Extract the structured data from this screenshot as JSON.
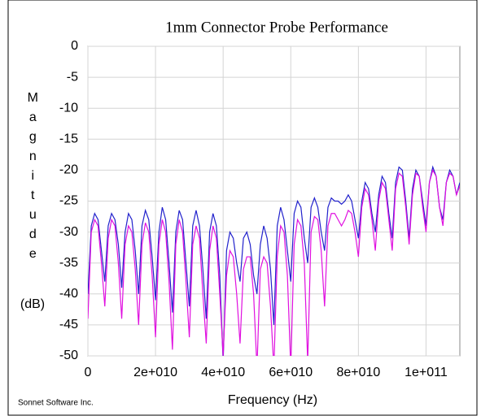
{
  "chart_data": {
    "type": "line",
    "title": "1mm Connector Probe Performance",
    "xlabel": "Frequency (Hz)",
    "ylabel": "Magnitude",
    "ylabel_unit": "(dB)",
    "footer": "Sonnet Software Inc.",
    "grid": true,
    "xlim": [
      0,
      110000000000.0
    ],
    "ylim": [
      -50,
      0
    ],
    "xticks": [
      0,
      {
        "value": 20000000000.0,
        "label": "2e+010"
      },
      {
        "value": 40000000000.0,
        "label": "4e+010"
      },
      {
        "value": 60000000000.0,
        "label": "6e+010"
      },
      {
        "value": 80000000000.0,
        "label": "8e+010"
      },
      {
        "value": 100000000000.0,
        "label": "1e+011"
      }
    ],
    "yticks": [
      0,
      -5,
      -10,
      -15,
      -20,
      -25,
      -30,
      -35,
      -40,
      -45,
      -50
    ],
    "x": [
      0,
      1000000000.0,
      2000000000.0,
      3000000000.0,
      4000000000.0,
      5000000000.0,
      6000000000.0,
      7000000000.0,
      8000000000.0,
      9000000000.0,
      10000000000.0,
      11000000000.0,
      12000000000.0,
      13000000000.0,
      14000000000.0,
      15000000000.0,
      16000000000.0,
      17000000000.0,
      18000000000.0,
      19000000000.0,
      20000000000.0,
      21000000000.0,
      22000000000.0,
      23000000000.0,
      24000000000.0,
      25000000000.0,
      26000000000.0,
      27000000000.0,
      28000000000.0,
      29000000000.0,
      30000000000.0,
      31000000000.0,
      32000000000.0,
      33000000000.0,
      34000000000.0,
      35000000000.0,
      36000000000.0,
      37000000000.0,
      38000000000.0,
      39000000000.0,
      40000000000.0,
      41000000000.0,
      42000000000.0,
      43000000000.0,
      44000000000.0,
      45000000000.0,
      46000000000.0,
      47000000000.0,
      48000000000.0,
      49000000000.0,
      50000000000.0,
      51000000000.0,
      52000000000.0,
      53000000000.0,
      54000000000.0,
      55000000000.0,
      56000000000.0,
      57000000000.0,
      58000000000.0,
      59000000000.0,
      60000000000.0,
      61000000000.0,
      62000000000.0,
      63000000000.0,
      64000000000.0,
      65000000000.0,
      66000000000.0,
      67000000000.0,
      68000000000.0,
      69000000000.0,
      70000000000.0,
      71000000000.0,
      72000000000.0,
      73000000000.0,
      74000000000.0,
      75000000000.0,
      76000000000.0,
      77000000000.0,
      78000000000.0,
      79000000000.0,
      80000000000.0,
      81000000000.0,
      82000000000.0,
      83000000000.0,
      84000000000.0,
      85000000000.0,
      86000000000.0,
      87000000000.0,
      88000000000.0,
      89000000000.0,
      90000000000.0,
      91000000000.0,
      92000000000.0,
      93000000000.0,
      94000000000.0,
      95000000000.0,
      96000000000.0,
      97000000000.0,
      98000000000.0,
      99000000000.0,
      100000000000.0,
      101000000000.0,
      102000000000.0,
      103000000000.0,
      104000000000.0,
      105000000000.0,
      106000000000.0,
      107000000000.0,
      108000000000.0,
      109000000000.0,
      110000000000.0
    ],
    "series": [
      {
        "color": "#2222cc",
        "values": [
          -40,
          -29,
          -27,
          -28,
          -33,
          -38,
          -29,
          -27,
          -28,
          -32,
          -39,
          -30,
          -27,
          -28,
          -33,
          -40,
          -29,
          -26.5,
          -28,
          -34,
          -41,
          -30,
          -26,
          -28,
          -35,
          -43,
          -30,
          -26.5,
          -28,
          -35,
          -42,
          -29,
          -26.5,
          -29,
          -36,
          -44,
          -30,
          -27,
          -29,
          -37,
          -51,
          -33,
          -30,
          -31,
          -35,
          -38,
          -31,
          -30,
          -32,
          -37,
          -40,
          -32,
          -29,
          -31,
          -36,
          -45,
          -29,
          -26,
          -28,
          -33,
          -38,
          -27,
          -25,
          -26,
          -31,
          -35,
          -26,
          -24.5,
          -26,
          -30,
          -33,
          -26,
          -24.5,
          -25,
          -25,
          -25.5,
          -25,
          -24,
          -25,
          -28,
          -31,
          -25,
          -22,
          -23,
          -27,
          -30,
          -24,
          -21,
          -22,
          -27,
          -31,
          -22,
          -19.5,
          -20,
          -25,
          -31,
          -23,
          -20,
          -21,
          -25,
          -29,
          -22,
          -19.5,
          -21,
          -26,
          -28,
          -22,
          -20,
          -21,
          -24,
          -22
        ]
      },
      {
        "color": "#e010e0",
        "values": [
          -44,
          -30,
          -28,
          -29,
          -35,
          -42,
          -31,
          -28,
          -29,
          -35,
          -44,
          -32,
          -29,
          -30,
          -36,
          -45,
          -32,
          -28.5,
          -30,
          -37,
          -47,
          -32,
          -28,
          -30,
          -38,
          -49,
          -32,
          -28,
          -30,
          -38,
          -47,
          -32,
          -29,
          -31,
          -40,
          -48,
          -33,
          -29,
          -31,
          -40,
          -50,
          -37,
          -33,
          -34,
          -40,
          -48,
          -36,
          -34,
          -34,
          -40,
          -52,
          -36,
          -34,
          -35,
          -42,
          -52,
          -34,
          -29,
          -30,
          -37,
          -52,
          -32,
          -28,
          -29,
          -35,
          -51,
          -30,
          -27.5,
          -28,
          -33,
          -42,
          -29,
          -27,
          -27,
          -28,
          -29,
          -28,
          -26.5,
          -27,
          -30,
          -34,
          -26,
          -23,
          -24,
          -28,
          -33,
          -25,
          -22,
          -23,
          -28,
          -33,
          -23,
          -20.5,
          -21,
          -26,
          -32,
          -24,
          -20.5,
          -21,
          -26,
          -30,
          -22,
          -20,
          -21,
          -26,
          -29,
          -22,
          -20.5,
          -21,
          -24,
          -22.5
        ]
      }
    ]
  }
}
